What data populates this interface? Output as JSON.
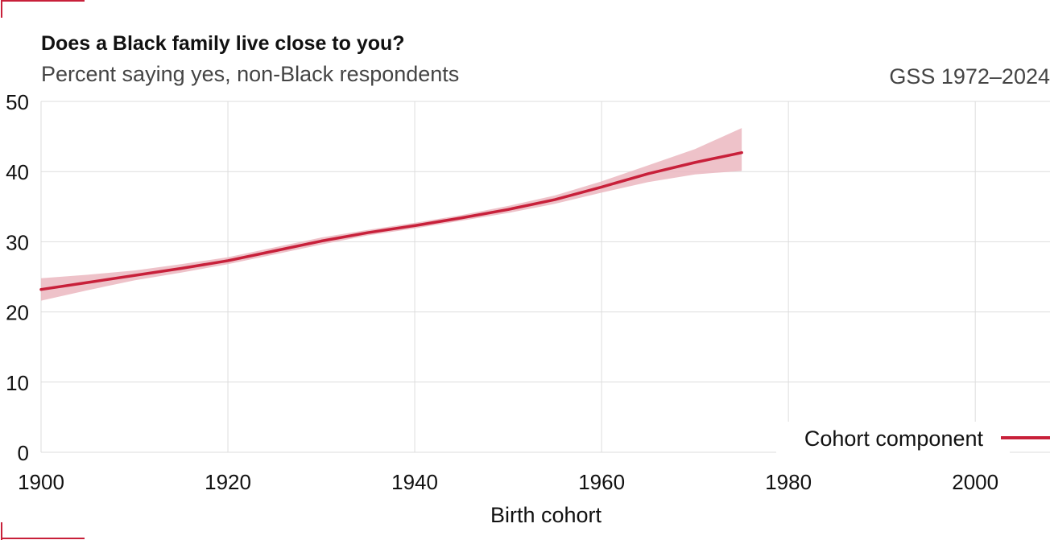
{
  "chart_data": {
    "type": "line",
    "title": "Does a Black family live close to you?",
    "subtitle": "Percent saying yes, non-Black respondents",
    "source": "GSS 1972–2024",
    "xlabel": "Birth cohort",
    "ylabel": "",
    "xlim": [
      1900,
      2008
    ],
    "ylim": [
      0,
      50
    ],
    "x_ticks": [
      1900,
      1920,
      1940,
      1960,
      1980,
      2000
    ],
    "y_ticks": [
      0,
      10,
      20,
      30,
      40,
      50
    ],
    "grid": true,
    "legend_position": "bottom-right",
    "series": [
      {
        "name": "Cohort component",
        "color": "#c8203a",
        "band_color": "#ebb7bf",
        "x": [
          1900,
          1905,
          1910,
          1915,
          1920,
          1925,
          1930,
          1935,
          1940,
          1945,
          1950,
          1955,
          1960,
          1965,
          1970,
          1975
        ],
        "y": [
          23.2,
          24.2,
          25.2,
          26.2,
          27.3,
          28.7,
          30.1,
          31.3,
          32.3,
          33.4,
          34.6,
          36.0,
          37.8,
          39.7,
          41.3,
          42.7
        ],
        "lower": [
          21.6,
          23.1,
          24.5,
          25.6,
          26.8,
          28.2,
          29.6,
          30.9,
          31.9,
          33.0,
          34.1,
          35.4,
          37.0,
          38.5,
          39.6,
          40.1
        ],
        "upper": [
          24.8,
          25.3,
          25.9,
          26.8,
          27.8,
          29.2,
          30.6,
          31.7,
          32.7,
          33.8,
          35.1,
          36.6,
          38.6,
          40.9,
          43.2,
          46.2
        ]
      }
    ]
  }
}
